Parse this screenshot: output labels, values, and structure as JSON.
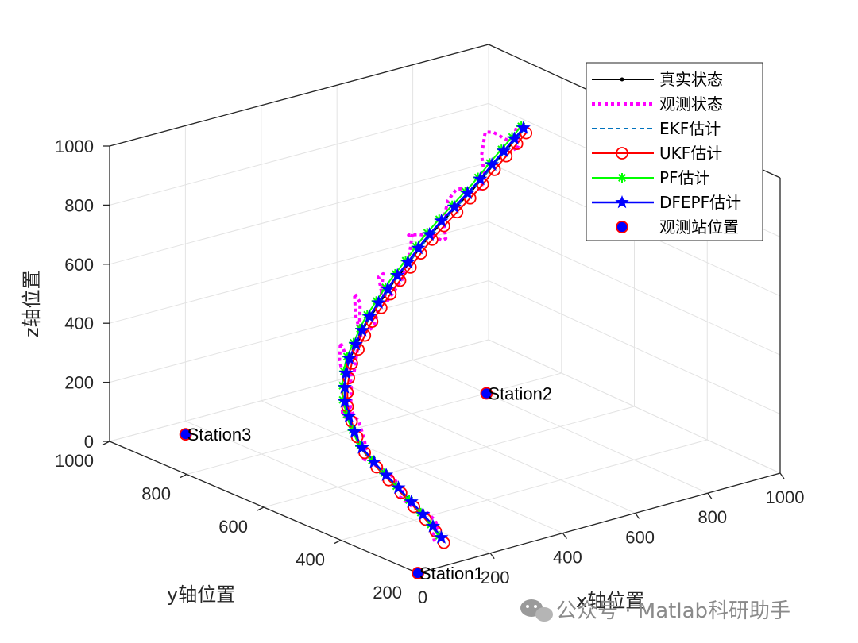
{
  "chart_data": {
    "type": "line3d",
    "title": "",
    "xlabel": "x轴位置",
    "ylabel": "y轴位置",
    "zlabel": "z轴位置",
    "xlim": [
      0,
      1000
    ],
    "ylim": [
      200,
      1000
    ],
    "zlim": [
      0,
      1000
    ],
    "xticks": [
      0,
      200,
      400,
      600,
      800,
      1000
    ],
    "yticks": [
      200,
      400,
      600,
      800,
      1000
    ],
    "zticks": [
      0,
      200,
      400,
      600,
      800,
      1000
    ],
    "grid": true,
    "legend_location": "top-right",
    "legend": [
      "真实状态",
      "观测状态",
      "EKF估计",
      "UKF估计",
      "PF估计",
      "DFEPF估计",
      "观测站位置"
    ],
    "series_colors": {
      "true": "#000000",
      "observed": "#ff00ff",
      "ekf": "#0072bd",
      "ukf": "#ff0000",
      "pf": "#00ff00",
      "dfepf": "#0000ff",
      "station": "#0000ff"
    },
    "trajectory": {
      "x": [
        170,
        190,
        208,
        220,
        225,
        230,
        245,
        260,
        280,
        310,
        345,
        380,
        420,
        460,
        500,
        545,
        590,
        640,
        690,
        740,
        785,
        820
      ],
      "y": [
        300,
        350,
        410,
        470,
        520,
        570,
        610,
        640,
        660,
        680,
        690,
        700,
        705,
        710,
        710,
        715,
        715,
        715,
        715,
        720,
        720,
        720
      ],
      "z": [
        0,
        20,
        40,
        70,
        100,
        140,
        190,
        240,
        290,
        340,
        390,
        440,
        490,
        540,
        590,
        640,
        690,
        740,
        790,
        840,
        890,
        930
      ]
    },
    "observed_noise_z": [
      0,
      0,
      20,
      -20,
      30,
      -30,
      80,
      -60,
      150,
      -80,
      200,
      -70,
      120,
      -60,
      100,
      40,
      -70,
      60,
      -20,
      140,
      -30,
      20
    ],
    "estimators_offset": {
      "ekf": [
        0,
        0,
        0
      ],
      "ukf": [
        4,
        -3,
        -10
      ],
      "pf": [
        -3,
        3,
        12
      ],
      "dfepf": [
        2,
        2,
        5
      ]
    },
    "stations": [
      {
        "name": "Station1",
        "x": 0,
        "y": 200,
        "z": 0
      },
      {
        "name": "Station2",
        "x": 800,
        "y": 800,
        "z": 0
      },
      {
        "name": "Station3",
        "x": 150,
        "y": 950,
        "z": 0
      }
    ]
  },
  "watermark": {
    "text": "公众号 · Matlab科研助手"
  }
}
